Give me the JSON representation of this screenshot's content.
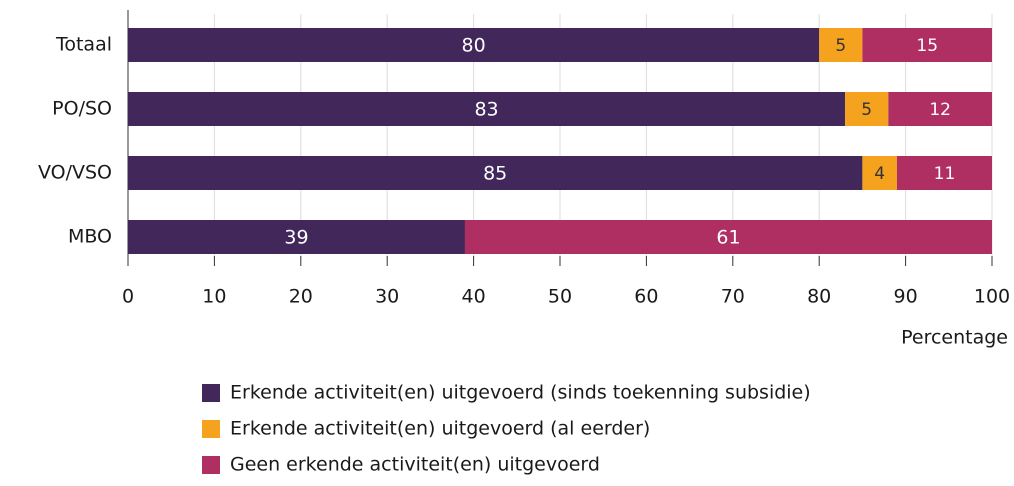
{
  "chart_data": {
    "type": "stacked-barh",
    "categories": [
      "Totaal",
      "PO/SO",
      "VO/VSO",
      "MBO"
    ],
    "series": [
      {
        "name": "Erkende activiteit(en) uitgevoerd (sinds toekenning subsidie)",
        "color": "#42275a",
        "values": [
          80,
          83,
          85,
          39
        ]
      },
      {
        "name": "Erkende activiteit(en) uitgevoerd (al eerder)",
        "color": "#f5a31f",
        "values": [
          5,
          5,
          4,
          null
        ]
      },
      {
        "name": "Geen erkende activiteit(en) uitgevoerd",
        "color": "#b02f62",
        "values": [
          15,
          12,
          11,
          61
        ]
      }
    ],
    "x_label": "Percentage",
    "xlim": [
      0,
      100
    ],
    "xticks": [
      0,
      10,
      20,
      30,
      40,
      50,
      60,
      70,
      80,
      90,
      100
    ],
    "grid": true
  }
}
